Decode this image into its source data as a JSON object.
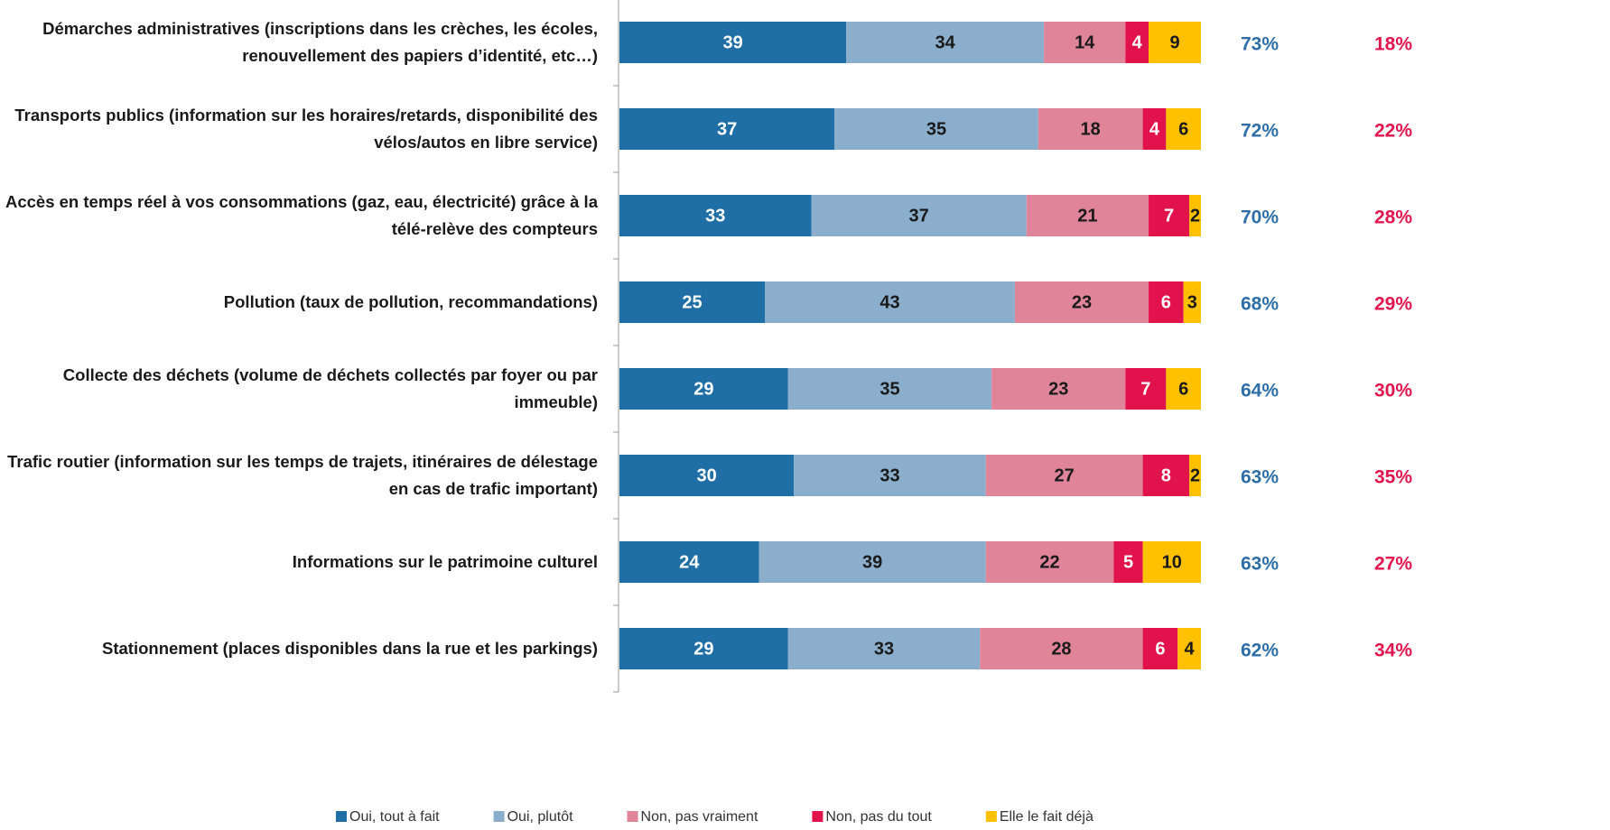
{
  "chart_data": {
    "type": "stacked_bar_horizontal",
    "categories": [
      "Démarches administratives (inscriptions dans les crèches, les écoles, renouvellement des papiers d’identité, etc…)",
      "Transports publics (information sur les horaires/retards, disponibilité des vélos/autos en libre service)",
      "Accès en temps réel à vos consommations  (gaz, eau, électricité) grâce à la télé-relève des compteurs",
      "Pollution (taux de pollution, recommandations)",
      "Collecte des déchets (volume de déchets collectés par foyer ou par  immeuble)",
      "Trafic routier (information sur les temps de trajets, itinéraires de délestage en cas de trafic important)",
      "Informations sur le patrimoine culturel",
      "Stationnement (places disponibles dans la rue et les parkings)"
    ],
    "series": [
      {
        "name": "Oui, tout à fait",
        "color": "#1f6ea6",
        "label_color": "#ffffff",
        "values": [
          39,
          37,
          33,
          25,
          29,
          30,
          24,
          29
        ]
      },
      {
        "name": "Oui, plutôt",
        "color": "#8aaecb",
        "label_color": "#1a1a1a",
        "values": [
          34,
          35,
          37,
          43,
          35,
          33,
          39,
          33
        ]
      },
      {
        "name": "Non, pas vraiment",
        "color": "#df8499",
        "label_color": "#1a1a1a",
        "values": [
          14,
          18,
          21,
          23,
          23,
          27,
          22,
          28
        ]
      },
      {
        "name": "Non, pas du tout",
        "color": "#e2134c",
        "label_color": "#ffffff",
        "values": [
          4,
          4,
          7,
          6,
          7,
          8,
          5,
          6
        ]
      },
      {
        "name": "Elle le fait déjà",
        "color": "#ffc000",
        "label_color": "#1a1a1a",
        "values": [
          9,
          6,
          2,
          3,
          6,
          2,
          10,
          4
        ]
      }
    ],
    "xlim": [
      0,
      100
    ],
    "totals": [
      {
        "color": "#2e6fa7",
        "values": [
          73,
          72,
          70,
          68,
          64,
          63,
          63,
          62
        ],
        "value_labels": [
          "73%",
          "72%",
          "70%",
          "68%",
          "64%",
          "63%",
          "63%",
          "62%"
        ]
      },
      {
        "color": "#e0164e",
        "values": [
          18,
          22,
          28,
          29,
          30,
          35,
          27,
          34
        ],
        "value_labels": [
          "18%",
          "22%",
          "28%",
          "29%",
          "30%",
          "35%",
          "27%",
          "34%"
        ]
      }
    ]
  }
}
